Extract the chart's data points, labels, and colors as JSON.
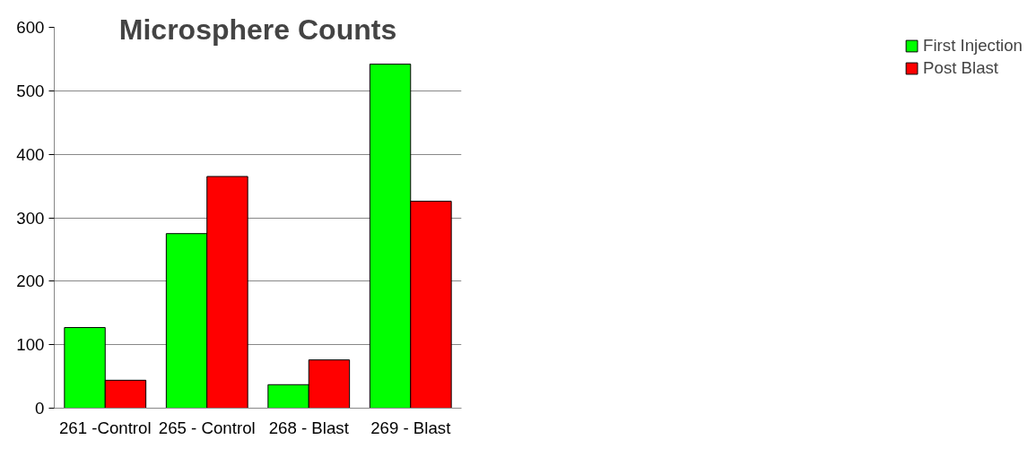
{
  "chart_data": {
    "type": "bar",
    "title": "Microsphere Counts",
    "categories": [
      "261 -Control",
      "265 - Control",
      "268 - Blast",
      "269 - Blast"
    ],
    "series": [
      {
        "name": "First Injection",
        "color": "#00ff00",
        "values": [
          127,
          275,
          37,
          542
        ]
      },
      {
        "name": "Post Blast",
        "color": "#ff0000",
        "values": [
          44,
          365,
          76,
          326
        ]
      }
    ],
    "ylim": [
      0,
      600
    ],
    "yticks": [
      0,
      100,
      200,
      300,
      400,
      500,
      600
    ],
    "grid": "y",
    "legend": "right"
  }
}
